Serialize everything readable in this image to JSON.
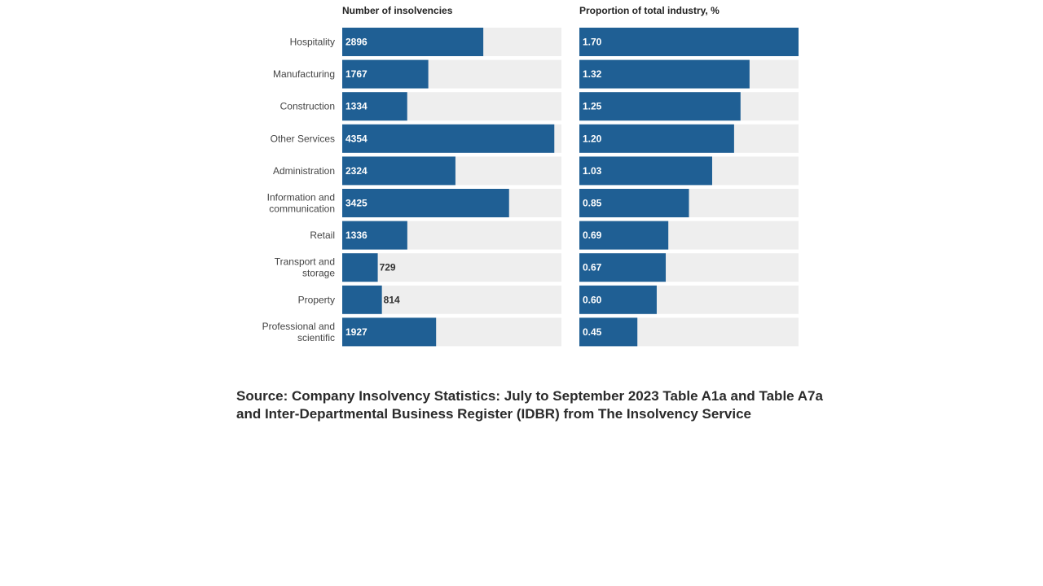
{
  "colors": {
    "bar": "#1f5f94",
    "track": "#eeeeee",
    "label_inside": "#ffffff",
    "label_outside": "#333333"
  },
  "source_note": "Source: Company Insolvency Statistics: July to September 2023 Table A1a and Table A7a and Inter-Departmental Business Register (IDBR) from The Insolvency Service",
  "chart_data": [
    {
      "type": "bar",
      "orientation": "horizontal",
      "title": "Number of insolvencies",
      "categories": [
        "Hospitality",
        "Manufacturing",
        "Construction",
        "Other Services",
        "Administration",
        "Information and communication",
        "Retail",
        "Transport and storage",
        "Property",
        "Professional and scientific"
      ],
      "values": [
        2896,
        1767,
        1334,
        4354,
        2324,
        3425,
        1336,
        729,
        814,
        1927
      ],
      "value_labels": [
        "2896",
        "1767",
        "1334",
        "4354",
        "2324",
        "3425",
        "1336",
        "729",
        "814",
        "1927"
      ],
      "xlim": [
        0,
        4500
      ],
      "grid": false,
      "legend": "none"
    },
    {
      "type": "bar",
      "orientation": "horizontal",
      "title": "Proportion of total industry, %",
      "categories": [
        "Hospitality",
        "Manufacturing",
        "Construction",
        "Other Services",
        "Administration",
        "Information and communication",
        "Retail",
        "Transport and storage",
        "Property",
        "Professional and scientific"
      ],
      "values": [
        1.7,
        1.32,
        1.25,
        1.2,
        1.03,
        0.85,
        0.69,
        0.67,
        0.6,
        0.45
      ],
      "value_labels": [
        "1.70",
        "1.32",
        "1.25",
        "1.20",
        "1.03",
        "0.85",
        "0.69",
        "0.67",
        "0.60",
        "0.45"
      ],
      "xlim": [
        0,
        1.7
      ],
      "grid": false,
      "legend": "none"
    }
  ]
}
